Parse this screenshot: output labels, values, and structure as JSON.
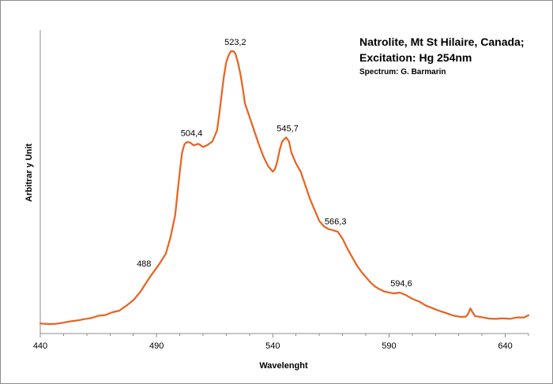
{
  "chart_data": {
    "type": "line",
    "title_lines": [
      "Natrolite, Mt St Hilaire, Canada;",
      "Excitation:  Hg 254nm"
    ],
    "credit": "Spectrum: G. Barmarin",
    "xlabel": "Wavelenght",
    "ylabel": "Arbitrar y Unit",
    "xlim": [
      440,
      650
    ],
    "ylim": [
      0,
      100
    ],
    "xticks": [
      440,
      490,
      540,
      590,
      640
    ],
    "grid": false,
    "line_color": "#e8621f",
    "series": [
      {
        "x": [
          440,
          444,
          447,
          450,
          453,
          456,
          459,
          462,
          465,
          468,
          471,
          474,
          477,
          480,
          483,
          486,
          488,
          491,
          494,
          496,
          498,
          499,
          500,
          501,
          502,
          503,
          504.4,
          506,
          508,
          510,
          512,
          514,
          516,
          517,
          518,
          519,
          520,
          521,
          522,
          523.2,
          524,
          525,
          526,
          527,
          528,
          530,
          532,
          534,
          536,
          538,
          540,
          541,
          542,
          543,
          544,
          545.7,
          547,
          548,
          550,
          552,
          554,
          556,
          558,
          560,
          562,
          564,
          566.3,
          568,
          570,
          572,
          574,
          576,
          578,
          580,
          582,
          584,
          586,
          588,
          590,
          592,
          594.6,
          597,
          600,
          603,
          606,
          609,
          612,
          615,
          618,
          621,
          623,
          624,
          625,
          626,
          627,
          630,
          633,
          636,
          639,
          642,
          645,
          648,
          650
        ],
        "y": [
          0.5,
          0.3,
          0.4,
          0.8,
          1.3,
          1.6,
          2.1,
          2.5,
          3.3,
          3.6,
          4.6,
          5.2,
          7.0,
          9.0,
          12.0,
          16.0,
          18.5,
          22.0,
          26.0,
          32.0,
          40.0,
          48.0,
          56.0,
          63.0,
          66.0,
          66.8,
          66.7,
          65.6,
          66.2,
          65.0,
          65.8,
          67.0,
          71.0,
          77.0,
          84.0,
          91.0,
          96.0,
          98.5,
          100.0,
          100.0,
          99.0,
          96.0,
          92.0,
          87.0,
          81.0,
          76.0,
          71.0,
          66.0,
          61.5,
          58.0,
          56.0,
          57.0,
          60.0,
          64.0,
          67.0,
          68.5,
          67.0,
          63.0,
          59.0,
          56.0,
          51.0,
          46.0,
          42.0,
          38.0,
          36.0,
          35.0,
          34.5,
          34.0,
          31.5,
          28.0,
          25.0,
          22.0,
          19.5,
          17.5,
          15.5,
          14.0,
          13.0,
          12.2,
          11.8,
          11.5,
          11.8,
          11.0,
          9.5,
          8.5,
          7.0,
          6.0,
          5.0,
          4.2,
          3.3,
          2.9,
          3.0,
          4.0,
          6.0,
          4.5,
          3.2,
          2.8,
          2.3,
          2.2,
          2.4,
          2.2,
          2.7,
          2.7,
          3.5
        ]
      }
    ],
    "annotations": [
      {
        "x": 488,
        "y": 18.5,
        "text": "488"
      },
      {
        "x": 504.4,
        "y": 66.7,
        "text": "504,4"
      },
      {
        "x": 523.2,
        "y": 100.0,
        "text": "523,2"
      },
      {
        "x": 545.7,
        "y": 68.5,
        "text": "545,7"
      },
      {
        "x": 566.3,
        "y": 34.5,
        "text": "566,3"
      },
      {
        "x": 594.6,
        "y": 11.8,
        "text": "594,6"
      }
    ]
  }
}
